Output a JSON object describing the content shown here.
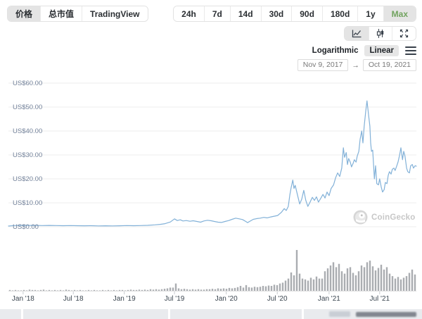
{
  "view_tabs": {
    "items": [
      {
        "label": "价格",
        "name": "tab-price",
        "selected": true
      },
      {
        "label": "总市值",
        "name": "tab-market-cap",
        "selected": false
      },
      {
        "label": "TradingView",
        "name": "tab-tradingview",
        "selected": false
      }
    ]
  },
  "range_buttons": {
    "selected_text_color": "#71a35f",
    "items": [
      {
        "label": "24h",
        "name": "range-24h",
        "selected": false
      },
      {
        "label": "7d",
        "name": "range-7d",
        "selected": false
      },
      {
        "label": "14d",
        "name": "range-14d",
        "selected": false
      },
      {
        "label": "30d",
        "name": "range-30d",
        "selected": false
      },
      {
        "label": "90d",
        "name": "range-90d",
        "selected": false
      },
      {
        "label": "180d",
        "name": "range-180d",
        "selected": false
      },
      {
        "label": "1y",
        "name": "range-1y",
        "selected": false
      },
      {
        "label": "Max",
        "name": "range-max",
        "selected": true
      }
    ]
  },
  "chart_controls": {
    "types": [
      {
        "name": "line-chart",
        "selected": true
      },
      {
        "name": "candlestick",
        "selected": false
      },
      {
        "name": "fullscreen",
        "selected": false
      }
    ]
  },
  "scale_toggle": {
    "logarithmic_label": "Logarithmic",
    "linear_label": "Linear",
    "selected": "Linear"
  },
  "date_range": {
    "start": "Nov 9, 2017",
    "end": "Oct 19, 2021",
    "arrow": "→"
  },
  "watermark": {
    "label": "CoinGecko"
  },
  "chart_data": {
    "type": "line",
    "title": "Price chart, Max range (with volume bars)",
    "currency": "US$",
    "grid": true,
    "line_color": "#82b1d8",
    "volume_color": "#a1a5a9",
    "y_axis": {
      "ylim": [
        0,
        60
      ],
      "tick_values": [
        60,
        50,
        40,
        30,
        20,
        10,
        0
      ],
      "tick_labels": [
        "US$60.00",
        "US$50.00",
        "US$40.00",
        "US$30.00",
        "US$20.00",
        "US$10.00",
        "US$0.00"
      ]
    },
    "x_axis": {
      "tick_labels": [
        "Jan '18",
        "Jul '18",
        "Jan '19",
        "Jul '19",
        "Jan '20",
        "Jul '20",
        "Jan '21",
        "Jul '21"
      ],
      "tick_pos": [
        3.6,
        15.9,
        28.4,
        40.7,
        53.4,
        65.9,
        78.6,
        91.0
      ]
    },
    "price_series_note": "pairs of [position % across Nov 9 2017 - Oct 19 2021, price in US$]",
    "price_series": [
      [
        0,
        0.3
      ],
      [
        1.4,
        0.5
      ],
      [
        3.1,
        0.6
      ],
      [
        4.8,
        0.55
      ],
      [
        6.6,
        0.55
      ],
      [
        8.3,
        0.5
      ],
      [
        10,
        0.55
      ],
      [
        11.7,
        0.5
      ],
      [
        13.4,
        0.45
      ],
      [
        15.2,
        0.5
      ],
      [
        16.9,
        0.45
      ],
      [
        18.6,
        0.4
      ],
      [
        20.3,
        0.45
      ],
      [
        22.1,
        0.35
      ],
      [
        23.8,
        0.4
      ],
      [
        25.5,
        0.35
      ],
      [
        27.2,
        0.4
      ],
      [
        29,
        0.5
      ],
      [
        30.7,
        0.45
      ],
      [
        32.4,
        0.5
      ],
      [
        34.1,
        0.6
      ],
      [
        35.9,
        0.8
      ],
      [
        37.2,
        1.0
      ],
      [
        38.4,
        1.3
      ],
      [
        39.7,
        2.0
      ],
      [
        40.7,
        3.3
      ],
      [
        41.4,
        2.6
      ],
      [
        42.1,
        2.9
      ],
      [
        42.8,
        2.4
      ],
      [
        43.6,
        2.6
      ],
      [
        44.5,
        2.3
      ],
      [
        45.3,
        2.5
      ],
      [
        46.2,
        2.2
      ],
      [
        47.1,
        1.9
      ],
      [
        47.9,
        2.4
      ],
      [
        48.8,
        2.7
      ],
      [
        49.7,
        2.5
      ],
      [
        50.5,
        2.2
      ],
      [
        51.4,
        1.9
      ],
      [
        52.2,
        1.8
      ],
      [
        53.1,
        2.2
      ],
      [
        54,
        2.6
      ],
      [
        54.8,
        3.1
      ],
      [
        55.7,
        3.6
      ],
      [
        56.6,
        3.3
      ],
      [
        57.4,
        3.0
      ],
      [
        58.3,
        2.1
      ],
      [
        58.6,
        1.7
      ],
      [
        59.1,
        2.2
      ],
      [
        60,
        3.1
      ],
      [
        60.9,
        3.4
      ],
      [
        61.7,
        3.6
      ],
      [
        62.6,
        3.9
      ],
      [
        63.4,
        3.7
      ],
      [
        64.3,
        4.1
      ],
      [
        65.2,
        4.4
      ],
      [
        66,
        4.7
      ],
      [
        66.9,
        6.0
      ],
      [
        67.6,
        7.6
      ],
      [
        68.1,
        6.8
      ],
      [
        68.6,
        8.5
      ],
      [
        69,
        13.5
      ],
      [
        69.3,
        16.3
      ],
      [
        69.7,
        19.5
      ],
      [
        70,
        16.0
      ],
      [
        70.3,
        17.3
      ],
      [
        70.9,
        13.0
      ],
      [
        71.4,
        9.5
      ],
      [
        71.9,
        11.5
      ],
      [
        72.4,
        15.2
      ],
      [
        72.9,
        11.0
      ],
      [
        73.4,
        8.5
      ],
      [
        74,
        10.5
      ],
      [
        74.5,
        12.3
      ],
      [
        75,
        11.0
      ],
      [
        75.5,
        12.5
      ],
      [
        76,
        10.3
      ],
      [
        76.6,
        12.0
      ],
      [
        77.1,
        13.5
      ],
      [
        77.6,
        12.0
      ],
      [
        78.1,
        14.5
      ],
      [
        78.6,
        13.0
      ],
      [
        79.1,
        16.0
      ],
      [
        79.7,
        17.5
      ],
      [
        80.2,
        20.5
      ],
      [
        80.7,
        22.5
      ],
      [
        81.2,
        21.0
      ],
      [
        81.7,
        24.5
      ],
      [
        82.1,
        33.0
      ],
      [
        82.4,
        29.0
      ],
      [
        82.8,
        31.0
      ],
      [
        83.1,
        26.0
      ],
      [
        83.4,
        28.5
      ],
      [
        83.8,
        27.0
      ],
      [
        84.1,
        25.0
      ],
      [
        84.5,
        26.5
      ],
      [
        84.8,
        28.0
      ],
      [
        85.2,
        27.0
      ],
      [
        85.5,
        29.5
      ],
      [
        85.9,
        31.5
      ],
      [
        86.2,
        36.5
      ],
      [
        86.6,
        40.0
      ],
      [
        86.9,
        35.0
      ],
      [
        87.2,
        42.0
      ],
      [
        87.6,
        48.5
      ],
      [
        87.9,
        52.6
      ],
      [
        88.3,
        46.5
      ],
      [
        88.6,
        42.0
      ],
      [
        88.8,
        35.0
      ],
      [
        89,
        31.5
      ],
      [
        89.3,
        32.0
      ],
      [
        89.7,
        20.0
      ],
      [
        90,
        25.5
      ],
      [
        90.3,
        18.0
      ],
      [
        90.7,
        17.5
      ],
      [
        91,
        20.0
      ],
      [
        91.4,
        16.5
      ],
      [
        91.7,
        14.5
      ],
      [
        92.1,
        15.5
      ],
      [
        92.4,
        18.5
      ],
      [
        92.8,
        18.0
      ],
      [
        93.1,
        21.5
      ],
      [
        93.4,
        23.0
      ],
      [
        93.8,
        22.0
      ],
      [
        94.1,
        24.0
      ],
      [
        94.5,
        24.5
      ],
      [
        94.8,
        23.5
      ],
      [
        95.2,
        25.5
      ],
      [
        95.5,
        27.0
      ],
      [
        95.9,
        30.0
      ],
      [
        96.2,
        33.0
      ],
      [
        96.6,
        28.0
      ],
      [
        96.9,
        31.5
      ],
      [
        97.2,
        29.5
      ],
      [
        97.6,
        24.5
      ],
      [
        97.9,
        23.0
      ],
      [
        98.3,
        22.5
      ],
      [
        98.6,
        25.5
      ],
      [
        99,
        26.0
      ],
      [
        99.3,
        24.5
      ],
      [
        99.7,
        25.5
      ],
      [
        100,
        25.3
      ]
    ],
    "volume_bars_note": "relative volume height % per bar, evenly spaced across range",
    "volume_bars": [
      2,
      1,
      2,
      1,
      1,
      2,
      1,
      3,
      2,
      2,
      1,
      2,
      3,
      1,
      2,
      1,
      2,
      1,
      2,
      1,
      3,
      2,
      1,
      2,
      1,
      2,
      1,
      1,
      2,
      1,
      2,
      1,
      1,
      2,
      1,
      2,
      1,
      2,
      1,
      2,
      2,
      1,
      2,
      3,
      2,
      2,
      3,
      2,
      3,
      2,
      4,
      3,
      4,
      3,
      4,
      5,
      6,
      8,
      8,
      18,
      6,
      4,
      5,
      4,
      3,
      4,
      3,
      4,
      3,
      3,
      4,
      4,
      5,
      4,
      6,
      5,
      6,
      5,
      7,
      6,
      7,
      9,
      12,
      8,
      14,
      9,
      8,
      10,
      9,
      10,
      12,
      11,
      13,
      12,
      15,
      14,
      18,
      20,
      25,
      30,
      45,
      38,
      100,
      42,
      30,
      28,
      25,
      32,
      28,
      35,
      30,
      30,
      48,
      55,
      62,
      70,
      58,
      66,
      48,
      42,
      55,
      58,
      44,
      38,
      48,
      62,
      58,
      70,
      74,
      60,
      50,
      56,
      64,
      52,
      58,
      42,
      36,
      30,
      34,
      28,
      32,
      36,
      44,
      52,
      40
    ]
  }
}
